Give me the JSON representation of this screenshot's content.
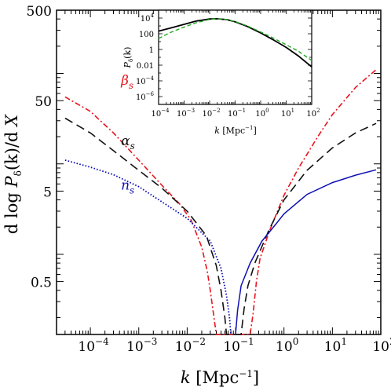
{
  "chart_data": [
    {
      "type": "line",
      "title": "",
      "xlabel": {
        "var": "k",
        "unit": "[Mpc",
        "exp": "−1",
        "close": "]"
      },
      "ylabel": {
        "pre": "d log ",
        "var": "P",
        "sub": "δ",
        "post": "(k)/d ",
        "var2": "X"
      },
      "xscale": "log",
      "yscale": "log",
      "xlim": [
        2e-05,
        100
      ],
      "ylim": [
        0.13,
        500
      ],
      "x_ticks": [
        {
          "value": 0.0001,
          "base": "10",
          "exp": "−4"
        },
        {
          "value": 0.001,
          "base": "10",
          "exp": "−3"
        },
        {
          "value": 0.01,
          "base": "10",
          "exp": "−2"
        },
        {
          "value": 0.1,
          "base": "10",
          "exp": "−1"
        },
        {
          "value": 1,
          "base": "10",
          "exp": "0"
        },
        {
          "value": 10,
          "base": "10",
          "exp": "1"
        },
        {
          "value": 100,
          "base": "10",
          "exp": "2"
        }
      ],
      "y_ticks": [
        {
          "value": 0.5,
          "label": "0.5"
        },
        {
          "value": 5,
          "label": "5"
        },
        {
          "value": 50,
          "label": "50"
        },
        {
          "value": 500,
          "label": "500"
        }
      ],
      "grid": false,
      "legend": "none",
      "series": [
        {
          "name": "β",
          "label_sub": "s",
          "color": "#e8141e",
          "style": "dash-dot",
          "label_pos_k": 5.5e-05,
          "label_pos_y": 75,
          "points": [
            [
              3e-05,
              55
            ],
            [
              0.0001,
              38
            ],
            [
              0.0003,
              22
            ],
            [
              0.001,
              11
            ],
            [
              0.003,
              5.8
            ],
            [
              0.007,
              3.6
            ],
            [
              0.012,
              2.4
            ],
            [
              0.02,
              1.2
            ],
            [
              0.026,
              0.65
            ],
            [
              0.03,
              0.4
            ],
            [
              0.035,
              0.22
            ],
            [
              0.04,
              0.13
            ],
            [
              0.2,
              0.13
            ],
            [
              0.23,
              0.22
            ],
            [
              0.27,
              0.5
            ],
            [
              0.32,
              0.9
            ],
            [
              0.5,
              1.8
            ],
            [
              1,
              4.5
            ],
            [
              2,
              9
            ],
            [
              5,
              20
            ],
            [
              10,
              35
            ],
            [
              30,
              70
            ],
            [
              80,
              110
            ]
          ]
        },
        {
          "name": "α",
          "label_sub": "s",
          "color": "#111111",
          "style": "dash",
          "label_pos_k": 5.5e-05,
          "label_pos_y": 16,
          "points": [
            [
              3e-05,
              32
            ],
            [
              0.0001,
              22
            ],
            [
              0.0003,
              14
            ],
            [
              0.001,
              8.5
            ],
            [
              0.003,
              5.4
            ],
            [
              0.01,
              3.0
            ],
            [
              0.025,
              1.6
            ],
            [
              0.04,
              0.75
            ],
            [
              0.05,
              0.4
            ],
            [
              0.06,
              0.2
            ],
            [
              0.065,
              0.13
            ],
            [
              0.13,
              0.13
            ],
            [
              0.15,
              0.25
            ],
            [
              0.18,
              0.45
            ],
            [
              0.25,
              0.8
            ],
            [
              0.5,
              1.9
            ],
            [
              1,
              4.0
            ],
            [
              3,
              8.5
            ],
            [
              10,
              15
            ],
            [
              30,
              22
            ],
            [
              80,
              28
            ]
          ]
        },
        {
          "name": "n",
          "label_sub": "s",
          "color": "#1010b4",
          "style": "dotted-solid",
          "label_pos_k": 5.5e-05,
          "label_pos_y": 5.2,
          "points_dotted": [
            [
              3e-05,
              11
            ],
            [
              0.0001,
              9.2
            ],
            [
              0.0003,
              7.6
            ],
            [
              0.001,
              5.6
            ],
            [
              0.003,
              3.8
            ],
            [
              0.01,
              2.5
            ],
            [
              0.03,
              1.4
            ],
            [
              0.05,
              0.7
            ],
            [
              0.065,
              0.35
            ],
            [
              0.075,
              0.2
            ],
            [
              0.08,
              0.13
            ]
          ],
          "points_solid": [
            [
              0.1,
              0.13
            ],
            [
              0.11,
              0.24
            ],
            [
              0.13,
              0.45
            ],
            [
              0.2,
              0.8
            ],
            [
              0.35,
              1.4
            ],
            [
              0.7,
              2.2
            ],
            [
              1,
              2.8
            ],
            [
              3,
              4.6
            ],
            [
              10,
              6.2
            ],
            [
              30,
              7.5
            ],
            [
              80,
              8.6
            ]
          ]
        }
      ]
    },
    {
      "type": "line",
      "inset": true,
      "title": "",
      "xlabel": {
        "var": "k",
        "unit": "[Mpc",
        "exp": "−1",
        "close": "]"
      },
      "ylabel": {
        "var": "P",
        "sub": "δ",
        "post": "(k)"
      },
      "xscale": "log",
      "yscale": "log",
      "xlim": [
        0.0001,
        100
      ],
      "ylim": [
        1e-07,
        100000.0
      ],
      "x_ticks": [
        {
          "value": 0.0001,
          "base": "10",
          "exp": "−4"
        },
        {
          "value": 0.001,
          "base": "10",
          "exp": "−3"
        },
        {
          "value": 0.01,
          "base": "10",
          "exp": "−2"
        },
        {
          "value": 0.1,
          "base": "10",
          "exp": "−1"
        },
        {
          "value": 1,
          "base": "10",
          "exp": "0"
        },
        {
          "value": 10,
          "base": "10",
          "exp": "1"
        },
        {
          "value": 100,
          "base": "10",
          "exp": "2"
        }
      ],
      "y_ticks": [
        {
          "value": 10000,
          "base": "10",
          "exp": "4",
          "label": ""
        },
        {
          "value": 100,
          "base": "",
          "exp": "",
          "label": "100"
        },
        {
          "value": 1,
          "base": "",
          "exp": "",
          "label": "1"
        },
        {
          "value": 0.01,
          "base": "",
          "exp": "",
          "label": "0.01"
        },
        {
          "value": 0.0001,
          "base": "10",
          "exp": "−4",
          "label": ""
        },
        {
          "value": 1e-06,
          "base": "10",
          "exp": "−6",
          "label": ""
        }
      ],
      "grid": false,
      "series": [
        {
          "color": "#000000",
          "style": "solid",
          "points": [
            [
              0.0001,
              220
            ],
            [
              0.0003,
              550
            ],
            [
              0.001,
              1600
            ],
            [
              0.003,
              4200
            ],
            [
              0.01,
              7500
            ],
            [
              0.02,
              8200
            ],
            [
              0.05,
              6200
            ],
            [
              0.1,
              3300
            ],
            [
              0.3,
              850
            ],
            [
              1,
              130
            ],
            [
              3,
              18
            ],
            [
              10,
              1.8
            ],
            [
              30,
              0.15
            ],
            [
              100,
              0.006
            ]
          ]
        },
        {
          "color": "#22aa22",
          "style": "dash",
          "points": [
            [
              0.0001,
              25
            ],
            [
              0.0003,
              150
            ],
            [
              0.001,
              700
            ],
            [
              0.003,
              2600
            ],
            [
              0.01,
              6800
            ],
            [
              0.02,
              8200
            ],
            [
              0.05,
              6500
            ],
            [
              0.1,
              3600
            ],
            [
              0.3,
              1000
            ],
            [
              1,
              170
            ],
            [
              3,
              30
            ],
            [
              10,
              4.0
            ],
            [
              30,
              0.6
            ],
            [
              100,
              0.04
            ]
          ]
        }
      ]
    }
  ]
}
